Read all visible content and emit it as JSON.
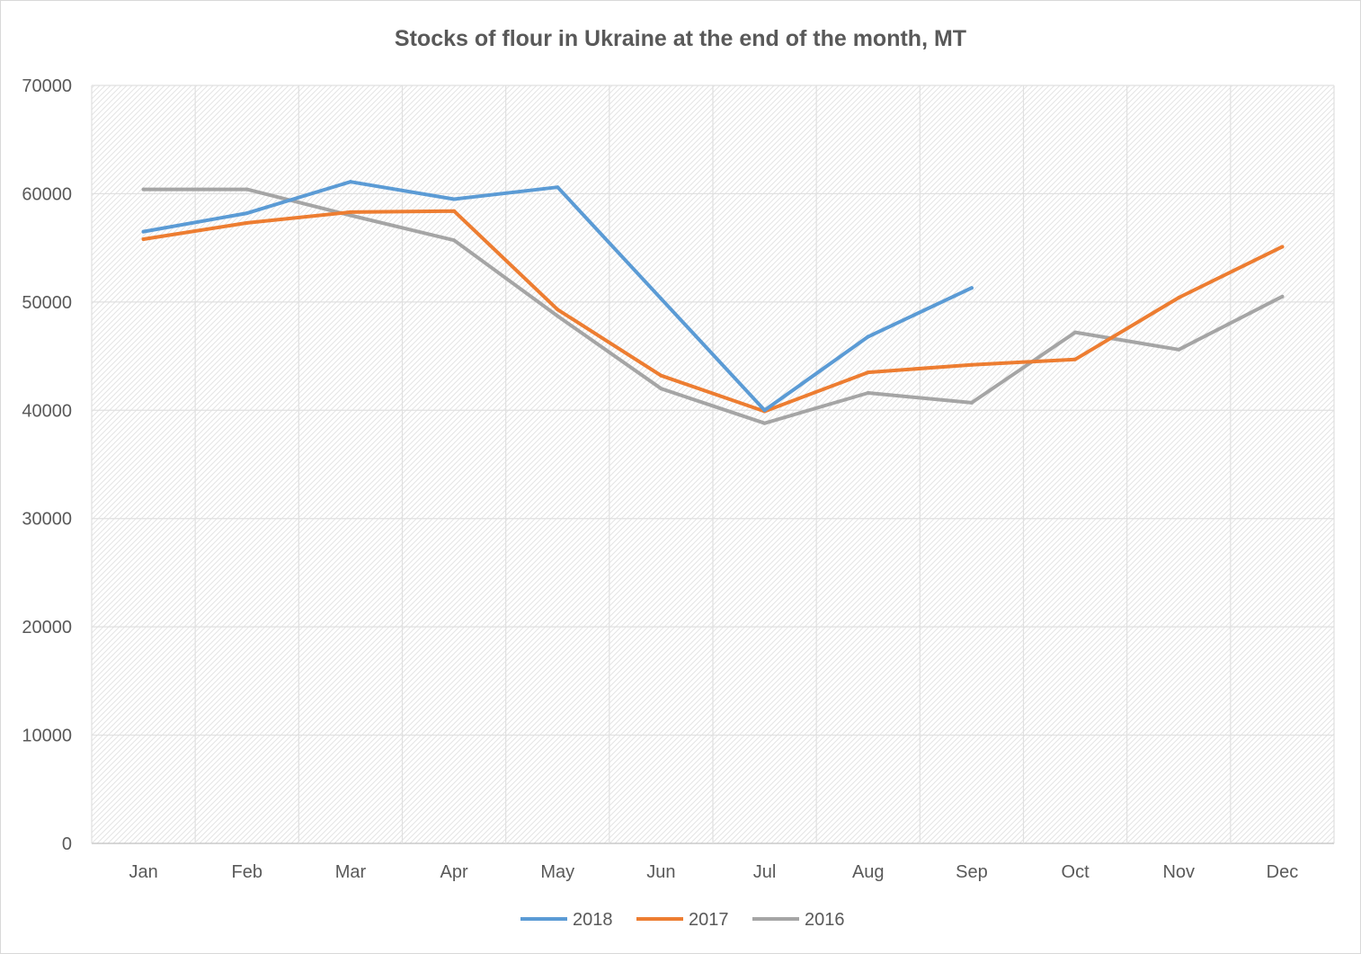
{
  "chart_data": {
    "type": "line",
    "title": "Stocks of flour in Ukraine at the end of the month, MT",
    "xlabel": "",
    "ylabel": "",
    "categories": [
      "Jan",
      "Feb",
      "Mar",
      "Apr",
      "May",
      "Jun",
      "Jul",
      "Aug",
      "Sep",
      "Oct",
      "Nov",
      "Dec"
    ],
    "ylim": [
      0,
      70000
    ],
    "yticks": [
      0,
      10000,
      20000,
      30000,
      40000,
      50000,
      60000,
      70000
    ],
    "grid": true,
    "legend_position": "bottom",
    "series": [
      {
        "name": "2018",
        "color": "#5b9bd5",
        "values": [
          56500,
          58200,
          61100,
          59500,
          60600,
          50300,
          40000,
          46800,
          51300,
          null,
          null,
          null
        ]
      },
      {
        "name": "2017",
        "color": "#ed7d31",
        "values": [
          55800,
          57300,
          58300,
          58400,
          49300,
          43200,
          39900,
          43500,
          44200,
          44700,
          50400,
          55100
        ]
      },
      {
        "name": "2016",
        "color": "#a5a5a5",
        "values": [
          60400,
          60400,
          58000,
          55700,
          48700,
          42000,
          38800,
          41600,
          40700,
          47200,
          45600,
          50500
        ]
      }
    ]
  }
}
